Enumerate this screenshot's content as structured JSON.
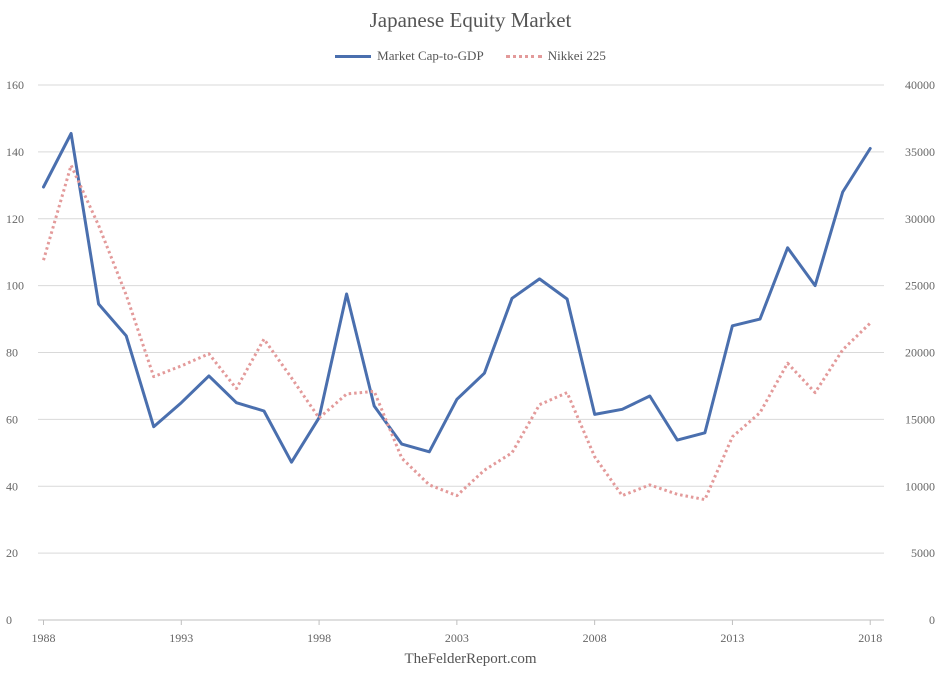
{
  "footer": "TheFelderReport.com",
  "chart_data": {
    "type": "line",
    "title": "Japanese Equity Market",
    "x": [
      1988,
      1989,
      1990,
      1991,
      1992,
      1993,
      1994,
      1995,
      1996,
      1997,
      1998,
      1999,
      2000,
      2001,
      2002,
      2003,
      2004,
      2005,
      2006,
      2007,
      2008,
      2009,
      2010,
      2011,
      2012,
      2013,
      2014,
      2015,
      2016,
      2017,
      2018
    ],
    "x_ticks": [
      1988,
      1993,
      1998,
      2003,
      2008,
      2013,
      2018
    ],
    "legend_position": "top-center",
    "grid": true,
    "y_left": {
      "ylim": [
        0,
        160
      ],
      "ticks": [
        0,
        20,
        40,
        60,
        80,
        100,
        120,
        140,
        160
      ]
    },
    "y_right": {
      "ylim": [
        0,
        40000
      ],
      "ticks": [
        0,
        5000,
        10000,
        15000,
        20000,
        25000,
        30000,
        35000,
        40000
      ]
    },
    "series": [
      {
        "name": "Market Cap-to-GDP",
        "axis": "left",
        "color": "#4a6fae",
        "style": "solid",
        "values": [
          129.5,
          145.5,
          94.5,
          85,
          57.8,
          65,
          73,
          65,
          62.5,
          47.2,
          60.5,
          97.5,
          64,
          52.6,
          50.3,
          66,
          73.8,
          96.2,
          102,
          96,
          61.5,
          63,
          67,
          53.8,
          56,
          88,
          90,
          111.3,
          100,
          128,
          141
        ]
      },
      {
        "name": "Nikkei 225",
        "axis": "right",
        "color": "#e39a9a",
        "style": "dotted",
        "values": [
          26900,
          34000,
          29500,
          24300,
          18200,
          19000,
          19900,
          17300,
          21000,
          18100,
          15100,
          16900,
          17100,
          12100,
          10100,
          9300,
          11200,
          12500,
          16100,
          17000,
          12200,
          9300,
          10100,
          9400,
          9000,
          13700,
          15500,
          19200,
          17000,
          20200,
          22200
        ]
      }
    ]
  }
}
